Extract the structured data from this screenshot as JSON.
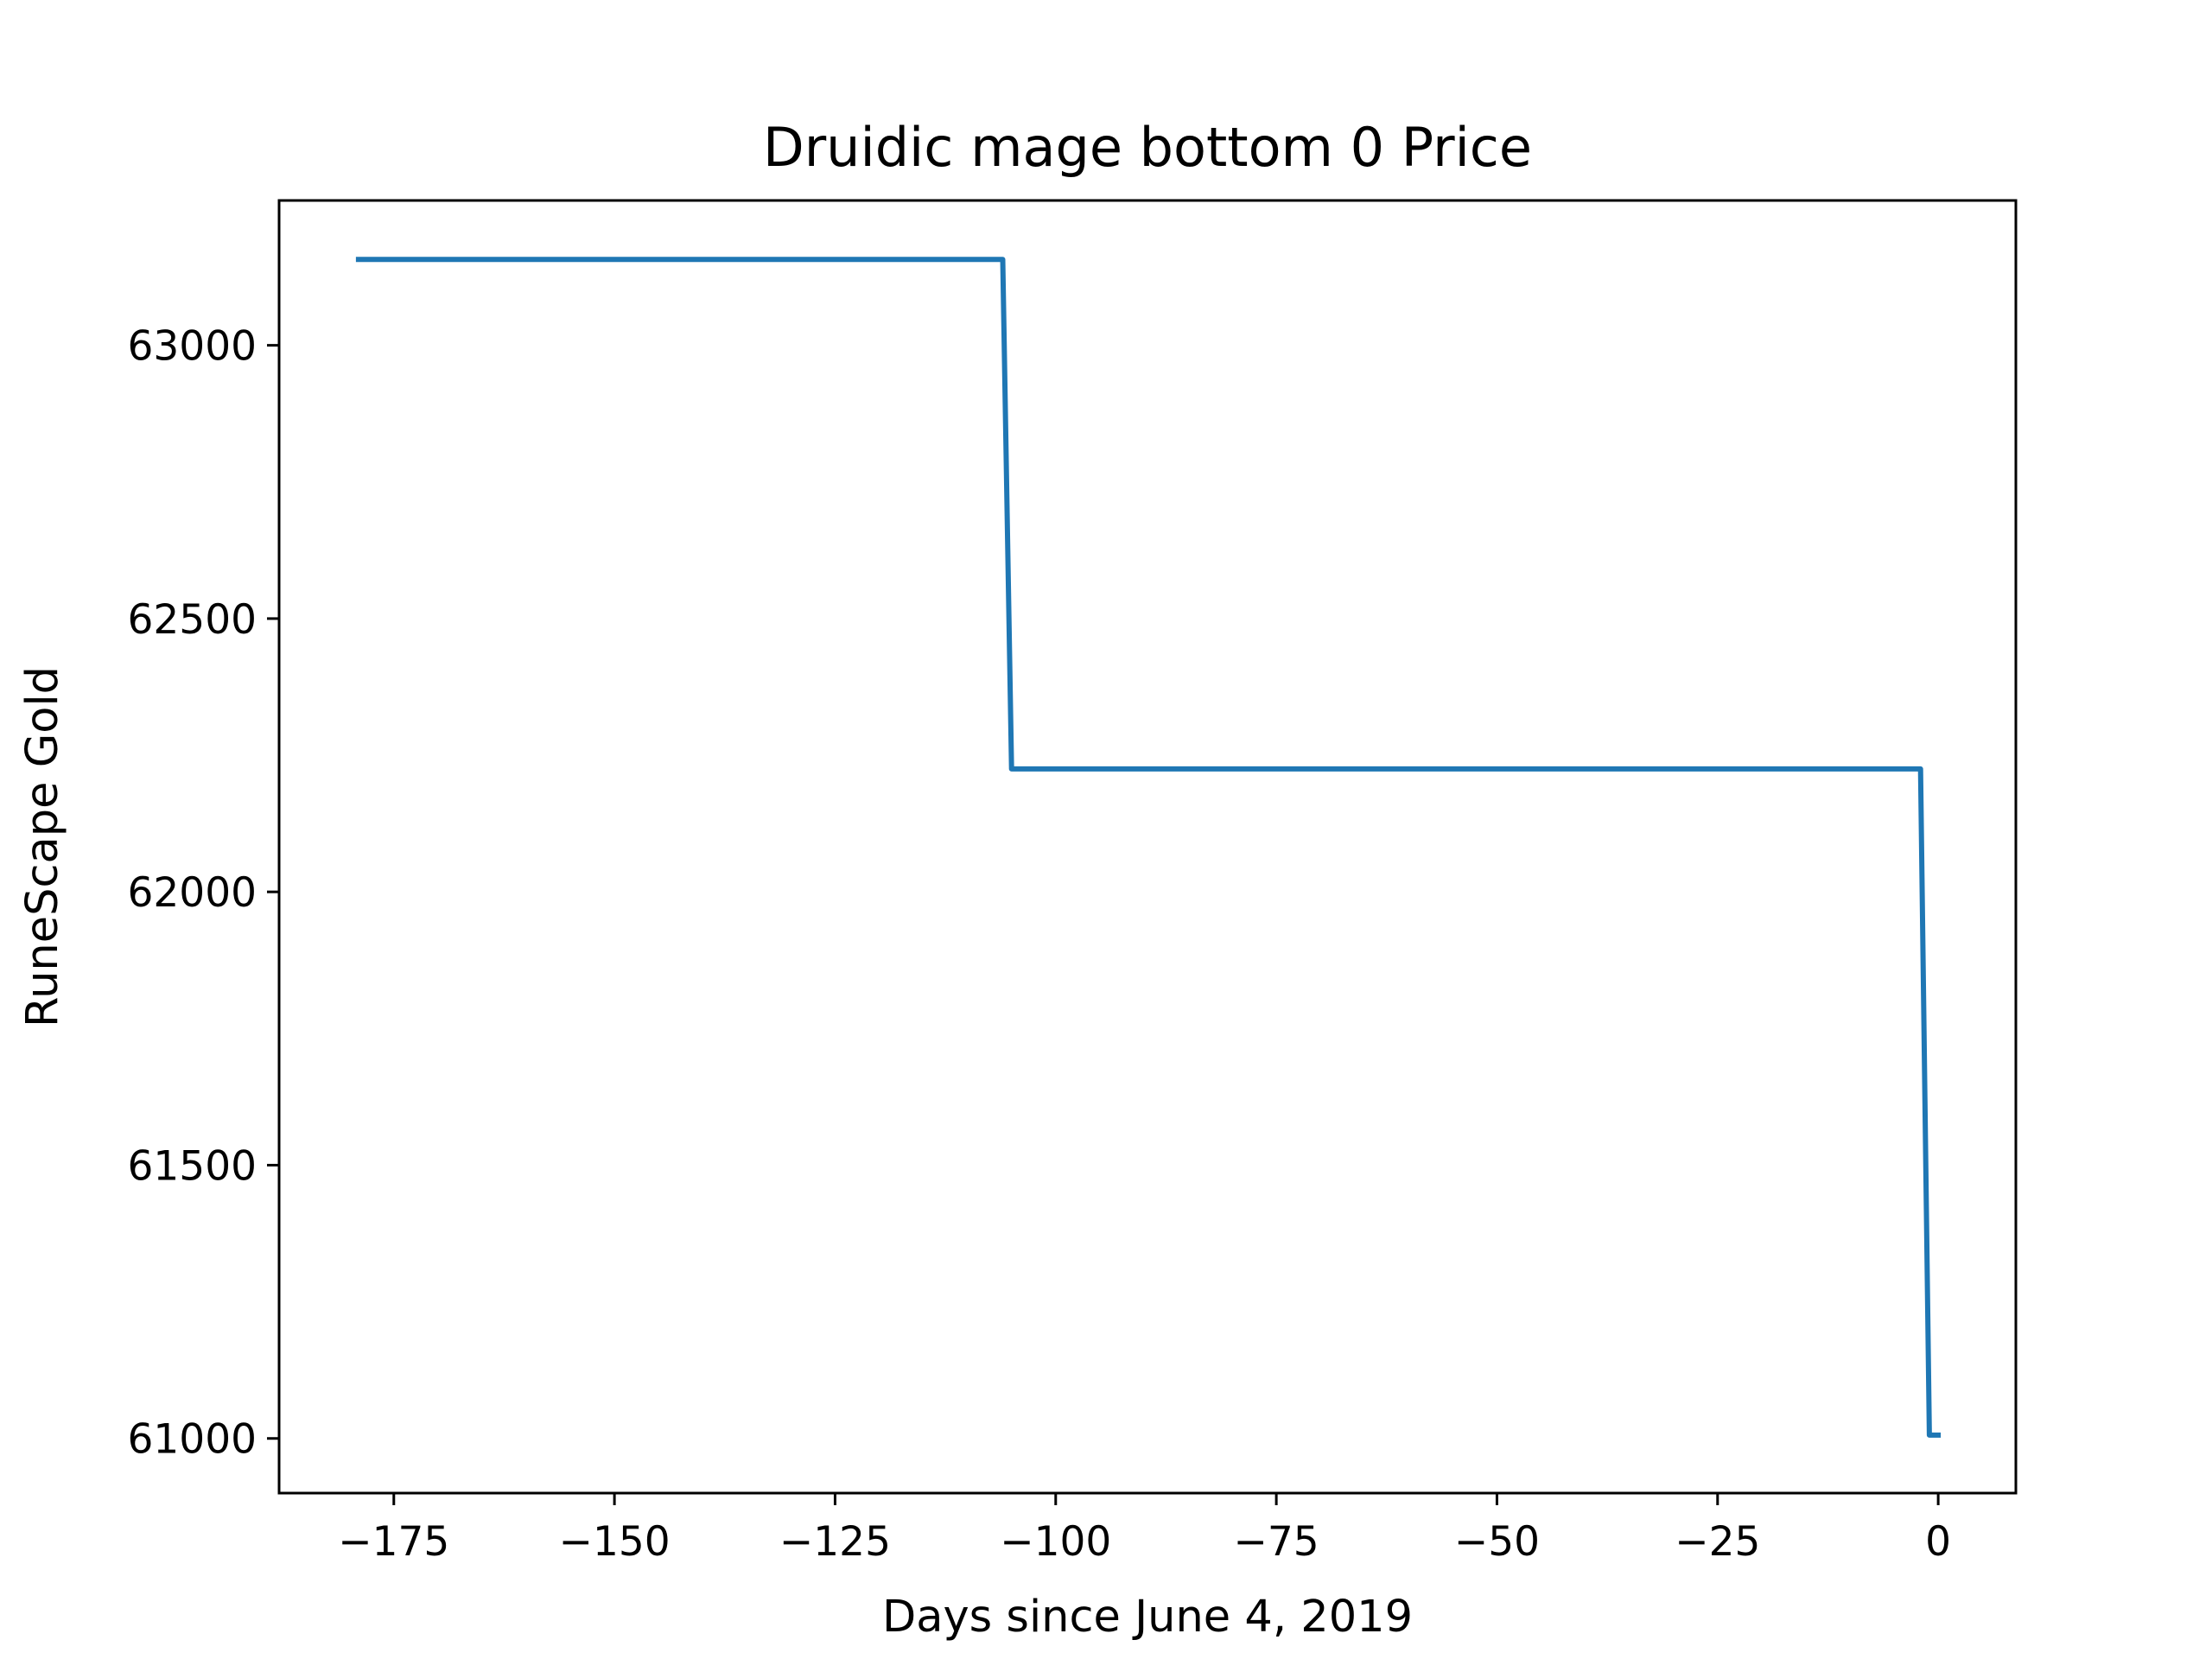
{
  "chart_data": {
    "type": "line",
    "title": "Druidic mage bottom 0 Price",
    "xlabel": "Days since June 4, 2019",
    "ylabel": "RuneScape Gold",
    "xlim": [
      -188,
      8.8
    ],
    "ylim": [
      60900,
      63265
    ],
    "xticks": [
      -175,
      -150,
      -125,
      -100,
      -75,
      -50,
      -25,
      0
    ],
    "xtick_labels": [
      "−175",
      "−150",
      "−125",
      "−100",
      "−75",
      "−50",
      "−25",
      "0"
    ],
    "yticks": [
      61000,
      61500,
      62000,
      62500,
      63000
    ],
    "ytick_labels": [
      "61000",
      "61500",
      "62000",
      "62500",
      "63000"
    ],
    "grid": false,
    "series": [
      {
        "color": "#1f77b4",
        "x": [
          -179,
          -106,
          -105,
          -2,
          -1,
          0
        ],
        "y": [
          63157,
          63157,
          62225,
          62225,
          61006,
          61006
        ]
      }
    ]
  }
}
